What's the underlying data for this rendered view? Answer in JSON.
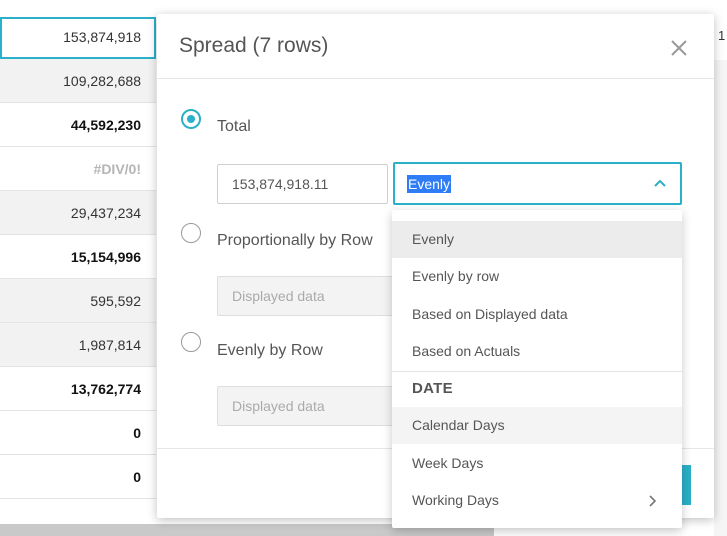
{
  "sheet": {
    "cells": [
      "153,874,918",
      "109,282,688",
      "44,592,230",
      "#DIV/0!",
      "29,437,234",
      "15,154,996",
      "595,592",
      "1,987,814",
      "13,762,774",
      "0",
      "0"
    ],
    "right_partial": "1"
  },
  "dialog": {
    "title": "Spread (7 rows)",
    "options": {
      "total_label": "Total",
      "proportional_label": "Proportionally by Row",
      "evenly_label": "Evenly by Row"
    },
    "total_value": "153,874,918.11",
    "method_selected": "Evenly",
    "proportional_placeholder": "Displayed data",
    "evenly_placeholder": "Displayed data"
  },
  "dropdown": {
    "items": [
      "Evenly",
      "Evenly by row",
      "Based on Displayed data",
      "Based on Actuals"
    ],
    "section_header": "DATE",
    "date_items": [
      "Calendar Days",
      "Week Days",
      "Working Days"
    ]
  },
  "colors": {
    "accent": "#2ab0c8",
    "selection": "#2e7cf6"
  },
  "icons": {
    "close": "close-icon",
    "chevron_up": "chevron-up-icon",
    "chevron_right": "chevron-right-icon"
  }
}
